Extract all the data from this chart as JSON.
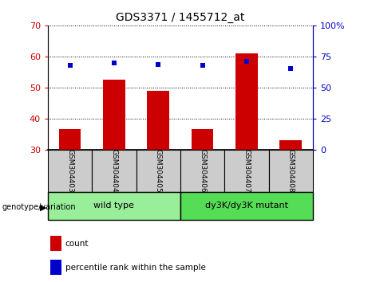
{
  "title": "GDS3371 / 1455712_at",
  "samples": [
    "GSM304403",
    "GSM304404",
    "GSM304405",
    "GSM304406",
    "GSM304407",
    "GSM304408"
  ],
  "count_values": [
    36.5,
    52.5,
    49.0,
    36.5,
    61.0,
    33.0
  ],
  "percentile_values": [
    67.5,
    70.0,
    68.75,
    67.5,
    71.25,
    65.0
  ],
  "bar_bottom": 30,
  "ylim_left": [
    30,
    70
  ],
  "ylim_right": [
    0,
    100
  ],
  "yticks_left": [
    30,
    40,
    50,
    60,
    70
  ],
  "yticks_right": [
    0,
    25,
    50,
    75,
    100
  ],
  "right_tick_labels": [
    "0",
    "25",
    "50",
    "75",
    "100%"
  ],
  "bar_color": "#cc0000",
  "dot_color": "#0000cc",
  "groups": [
    {
      "label": "wild type",
      "indices": [
        0,
        1,
        2
      ],
      "color": "#99ee99"
    },
    {
      "label": "dy3K/dy3K mutant",
      "indices": [
        3,
        4,
        5
      ],
      "color": "#55dd55"
    }
  ],
  "group_label": "genotype/variation",
  "legend_count_label": "count",
  "legend_percentile_label": "percentile rank within the sample",
  "sample_box_color": "#cccccc",
  "left_tick_color": "#cc0000",
  "right_tick_color": "#0000cc"
}
